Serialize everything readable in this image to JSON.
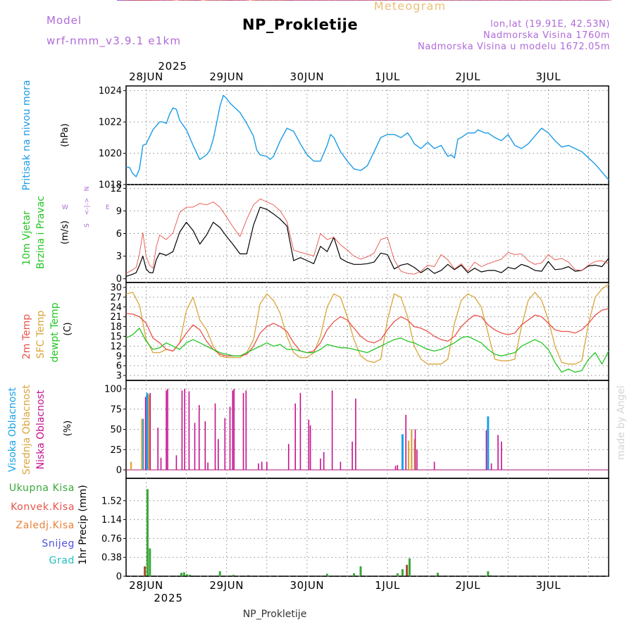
{
  "header": {
    "model_label": "Model",
    "model_name": "wrf-nmm_v3.9.1 e1km",
    "app_title": "Meteogram",
    "location": "NP_Prokletije",
    "coords": "lon,lat (19.91E, 42.53N)",
    "altitude": "Nadmorska Visina 1760m",
    "model_altitude": "Nadmorska Visina u modelu 1672.05m",
    "watermark": "made by Angel",
    "footer_location": "NP_Prokletije"
  },
  "time_axis": {
    "year": "2025",
    "day_labels": [
      "28JUN",
      "29JUN",
      "30JUN",
      "1JUL",
      "2JUL",
      "3JUL"
    ],
    "start_hour": -6,
    "end_hour": 138
  },
  "colors": {
    "pressure": "#1a9be6",
    "temp_2m": "#e8524a",
    "temp_sfc": "#d9a53a",
    "dewpoint": "#22c522",
    "wind_speed": "#000000",
    "gust": "#e8524a",
    "high_cloud": "#1aa3e8",
    "mid_cloud": "#d9a53a",
    "low_cloud": "#c4128e",
    "total_precip": "#3aa83a",
    "convective_precip": "#e8524a",
    "stratiform_precip": "#e8823a",
    "snow": "#5050e0",
    "graupel": "#22c0c0"
  },
  "panels": {
    "pressure": {
      "ylabel_parts": [
        "Pritisak na nivou mora"
      ],
      "unit": "(hPa)",
      "yticks": [
        "1024",
        "1022",
        "1020",
        "1018"
      ]
    },
    "wind": {
      "ylabel_parts": [
        "10m Vjetar",
        "Brzina i Pravac"
      ],
      "unit": "(m/s)",
      "yticks": [
        "12",
        "9",
        "6",
        "3",
        "0"
      ],
      "compass": {
        "w": "W",
        "e": "E",
        "n": "N",
        "s": "S",
        "arrow": "<-|->"
      }
    },
    "temperature": {
      "ylabel_parts": [
        "2m Temp",
        "SFC Temp",
        "dewpt Temp"
      ],
      "unit": "(C)",
      "yticks": [
        "30",
        "27",
        "24",
        "21",
        "18",
        "15",
        "12",
        "9",
        "6",
        "3"
      ]
    },
    "cloud": {
      "ylabel_parts": [
        "Visoka Oblacnost",
        "Srednja Oblacnost",
        "Niska Oblacnost"
      ],
      "unit": "(%)",
      "yticks": [
        "100",
        "75",
        "50",
        "25",
        "0"
      ]
    },
    "precip": {
      "legend": [
        "Ukupna Kisa",
        "Konvek.Kisa",
        "Zaledj.Kisa",
        "Snijeg",
        "Grad"
      ],
      "ylabel": "1hr Precip (mm)",
      "yticks": [
        "1.52",
        "1.14",
        "0.76",
        "0.38",
        "0"
      ]
    }
  },
  "chart_data": {
    "type": "line",
    "x_unit": "hours from 28JUN 00 UTC",
    "pressure_hpa": {
      "ylim": [
        1018,
        1024.3
      ],
      "x": [
        -6,
        -5,
        -4,
        -3,
        -2,
        -1,
        0,
        2,
        4,
        5,
        6,
        7,
        8,
        9,
        10,
        12,
        14,
        16,
        18,
        19,
        20,
        21,
        22,
        23,
        24,
        25,
        26,
        28,
        30,
        32,
        33,
        34,
        36,
        37,
        38,
        40,
        42,
        44,
        46,
        48,
        50,
        52,
        54,
        55,
        56,
        58,
        60,
        62,
        64,
        66,
        68,
        70,
        72,
        74,
        76,
        78,
        79,
        80,
        82,
        84,
        86,
        88,
        90,
        91,
        92,
        93,
        94,
        96,
        98,
        99,
        100,
        101,
        102,
        104,
        106,
        108,
        110,
        112,
        114,
        116,
        118,
        120,
        122,
        124,
        126,
        128,
        130,
        132,
        134,
        136,
        138
      ],
      "y": [
        1019.1,
        1019.1,
        1018.7,
        1018.5,
        1019.0,
        1020.5,
        1020.6,
        1021.5,
        1022.0,
        1022.0,
        1021.9,
        1022.5,
        1022.9,
        1022.8,
        1022.1,
        1021.5,
        1020.5,
        1019.6,
        1019.9,
        1020.2,
        1020.9,
        1021.9,
        1023.0,
        1023.7,
        1023.5,
        1023.2,
        1023.0,
        1022.6,
        1021.9,
        1021.1,
        1020.2,
        1019.9,
        1019.8,
        1019.6,
        1019.8,
        1020.8,
        1021.6,
        1021.4,
        1020.6,
        1019.9,
        1019.5,
        1019.5,
        1020.5,
        1021.2,
        1021.0,
        1020.1,
        1019.5,
        1019.0,
        1018.9,
        1019.2,
        1020.1,
        1021.0,
        1021.2,
        1021.2,
        1021.0,
        1021.3,
        1021.0,
        1020.6,
        1020.3,
        1020.7,
        1020.3,
        1020.5,
        1019.8,
        1019.9,
        1019.7,
        1020.9,
        1021.0,
        1021.3,
        1021.3,
        1021.5,
        1021.4,
        1021.3,
        1021.3,
        1021.0,
        1020.8,
        1021.2,
        1020.5,
        1020.3,
        1020.6,
        1021.1,
        1021.6,
        1021.3,
        1020.8,
        1020.4,
        1020.5,
        1020.3,
        1020.1,
        1019.7,
        1019.3,
        1018.8,
        1018.3
      ]
    },
    "wind": {
      "ylim": [
        -0.5,
        12.5
      ],
      "x": [
        -6,
        -4,
        -3,
        -2,
        -1,
        0,
        1,
        2,
        3,
        4,
        6,
        8,
        10,
        12,
        14,
        16,
        18,
        20,
        22,
        24,
        26,
        28,
        30,
        32,
        34,
        36,
        38,
        40,
        42,
        44,
        46,
        48,
        50,
        52,
        54,
        56,
        58,
        60,
        62,
        64,
        66,
        68,
        70,
        72,
        74,
        76,
        78,
        80,
        82,
        84,
        86,
        88,
        90,
        92,
        94,
        96,
        98,
        100,
        102,
        104,
        106,
        108,
        110,
        112,
        114,
        116,
        118,
        120,
        122,
        124,
        126,
        128,
        130,
        132,
        134,
        136,
        138
      ],
      "speed": [
        0.3,
        0.6,
        0.8,
        1.8,
        3.0,
        1.3,
        0.8,
        0.8,
        2.5,
        3.4,
        3.1,
        3.6,
        6.2,
        7.5,
        6.4,
        4.6,
        5.8,
        7.5,
        6.8,
        5.6,
        4.5,
        3.3,
        3.3,
        7.1,
        9.5,
        9.2,
        8.6,
        7.9,
        7.0,
        2.4,
        2.8,
        2.4,
        2.0,
        4.3,
        3.6,
        5.5,
        2.7,
        2.2,
        1.9,
        1.9,
        2.0,
        2.2,
        3.4,
        3.2,
        1.3,
        1.8,
        2.0,
        1.5,
        0.8,
        1.4,
        0.7,
        1.1,
        1.9,
        1.2,
        1.8,
        0.8,
        1.4,
        0.9,
        1.1,
        1.1,
        0.8,
        1.5,
        1.3,
        1.9,
        1.6,
        1.1,
        1.0,
        2.3,
        1.2,
        1.3,
        1.6,
        1.0,
        1.1,
        1.7,
        1.8,
        1.6,
        2.7
      ],
      "gust": [
        0.7,
        1.2,
        1.5,
        3.3,
        6.1,
        3.0,
        1.8,
        1.4,
        4.2,
        5.8,
        5.2,
        6.1,
        8.8,
        9.5,
        9.5,
        10.0,
        9.8,
        10.2,
        9.5,
        8.2,
        6.8,
        5.6,
        7.9,
        9.8,
        10.6,
        10.2,
        9.8,
        9.0,
        7.6,
        3.8,
        3.5,
        3.3,
        3.0,
        6.0,
        5.2,
        5.5,
        4.5,
        3.8,
        3.0,
        2.6,
        2.9,
        3.4,
        5.2,
        5.5,
        2.5,
        1.0,
        0.7,
        0.6,
        1.0,
        1.8,
        1.6,
        3.2,
        2.5,
        1.3,
        2.0,
        1.0,
        2.2,
        1.6,
        2.0,
        2.3,
        2.6,
        3.5,
        3.2,
        3.3,
        2.4,
        1.9,
        2.1,
        3.2,
        2.5,
        2.7,
        2.2,
        1.2,
        1.1,
        1.8,
        2.3,
        2.4,
        2.0
      ]
    },
    "temperature_c": {
      "ylim": [
        1.5,
        31.5
      ],
      "x": [
        -6,
        -4,
        -2,
        0,
        2,
        4,
        6,
        8,
        10,
        12,
        14,
        16,
        18,
        20,
        22,
        24,
        26,
        28,
        30,
        32,
        34,
        36,
        38,
        40,
        42,
        44,
        46,
        48,
        50,
        52,
        54,
        56,
        58,
        60,
        62,
        64,
        66,
        68,
        70,
        72,
        74,
        76,
        78,
        80,
        82,
        84,
        86,
        88,
        90,
        92,
        94,
        96,
        98,
        100,
        102,
        104,
        106,
        108,
        110,
        112,
        114,
        116,
        118,
        120,
        122,
        124,
        126,
        128,
        130,
        132,
        134,
        136,
        138
      ],
      "t2m": [
        22,
        21.8,
        21,
        19,
        14.5,
        13,
        11,
        10.5,
        13,
        16,
        18.5,
        17,
        13.5,
        11,
        9.5,
        9,
        9,
        9,
        9.5,
        12,
        16,
        18,
        19,
        18,
        16.5,
        13,
        10.5,
        10,
        10.5,
        13,
        17,
        19.5,
        21,
        20,
        17.5,
        15,
        13.5,
        13,
        14,
        17,
        19.5,
        21,
        20,
        18,
        17.5,
        16.5,
        15,
        14,
        13.5,
        15,
        18,
        20,
        21.5,
        21,
        18.5,
        17,
        16,
        15.5,
        16,
        18.5,
        20,
        21.5,
        21,
        19,
        17,
        16.5,
        16.5,
        16,
        17,
        19,
        21.5,
        23,
        23.5
      ],
      "tsfc": [
        28,
        28.5,
        24.5,
        14,
        10,
        10,
        11,
        10.5,
        13,
        23,
        27,
        20,
        17,
        12,
        9,
        8.5,
        8.5,
        8.5,
        10,
        14,
        25,
        28,
        26,
        22,
        15,
        10,
        8.5,
        8.5,
        10,
        15,
        24,
        28,
        27,
        21,
        14,
        9,
        7.5,
        7,
        8,
        20,
        28,
        27,
        21,
        12,
        8,
        6.5,
        6.5,
        6.5,
        8,
        19,
        26,
        28,
        27,
        24,
        16,
        8,
        7.5,
        7.5,
        8,
        18,
        26,
        28.5,
        26,
        20,
        12,
        7,
        6.5,
        6.5,
        7.5,
        19,
        27,
        29.5,
        31
      ],
      "dewpoint": [
        14.5,
        15.5,
        17.5,
        13.5,
        11,
        11.5,
        13,
        12,
        11,
        13,
        14,
        13,
        12,
        11,
        10,
        9.5,
        9,
        9,
        10,
        11,
        12,
        13,
        12,
        12.5,
        11,
        11,
        10.5,
        10,
        10,
        11,
        12.5,
        12,
        11.5,
        11.5,
        11,
        10.5,
        10,
        11,
        12,
        13,
        14,
        14.5,
        13.5,
        13,
        12,
        11,
        10.5,
        11,
        12,
        13,
        14.5,
        15,
        14,
        13,
        11,
        9.5,
        9,
        9.5,
        10,
        12,
        13,
        14,
        13,
        11,
        7,
        4,
        5,
        4,
        4.5,
        8,
        10,
        6.5,
        10.5
      ]
    },
    "cloud_pct": {
      "ylim": [
        0,
        100
      ],
      "high": [
        {
          "x": -1,
          "v": 63
        },
        {
          "x": 0.3,
          "v": 95
        },
        {
          "x": 76.5,
          "v": 44
        },
        {
          "x": 102,
          "v": 66
        }
      ],
      "mid": [
        {
          "x": -4.5,
          "v": 10
        },
        {
          "x": -1.3,
          "v": 63
        },
        {
          "x": 0.8,
          "v": 93
        },
        {
          "x": 78.3,
          "v": 36
        },
        {
          "x": 79.2,
          "v": 50
        },
        {
          "x": 80.1,
          "v": 38
        }
      ],
      "low": [
        {
          "x": -0.2,
          "v": 90
        },
        {
          "x": 1.2,
          "v": 95
        },
        {
          "x": 3.5,
          "v": 52
        },
        {
          "x": 4.4,
          "v": 15
        },
        {
          "x": 6,
          "v": 98
        },
        {
          "x": 6.4,
          "v": 100
        },
        {
          "x": 9,
          "v": 18
        },
        {
          "x": 10.7,
          "v": 98
        },
        {
          "x": 11.5,
          "v": 100
        },
        {
          "x": 12.8,
          "v": 97
        },
        {
          "x": 14.5,
          "v": 58
        },
        {
          "x": 15.8,
          "v": 80
        },
        {
          "x": 17.6,
          "v": 60
        },
        {
          "x": 18.4,
          "v": 9
        },
        {
          "x": 20.6,
          "v": 82
        },
        {
          "x": 21.5,
          "v": 38
        },
        {
          "x": 23.5,
          "v": 64
        },
        {
          "x": 25,
          "v": 78
        },
        {
          "x": 25.8,
          "v": 98
        },
        {
          "x": 26.2,
          "v": 100
        },
        {
          "x": 29,
          "v": 95
        },
        {
          "x": 29.8,
          "v": 98
        },
        {
          "x": 33.5,
          "v": 8
        },
        {
          "x": 34.5,
          "v": 10
        },
        {
          "x": 36,
          "v": 10
        },
        {
          "x": 42.5,
          "v": 32
        },
        {
          "x": 44.5,
          "v": 82
        },
        {
          "x": 46,
          "v": 95
        },
        {
          "x": 48.5,
          "v": 62
        },
        {
          "x": 49,
          "v": 55
        },
        {
          "x": 52,
          "v": 14
        },
        {
          "x": 53,
          "v": 22
        },
        {
          "x": 55.5,
          "v": 98
        },
        {
          "x": 58,
          "v": 10
        },
        {
          "x": 61.5,
          "v": 35
        },
        {
          "x": 62.5,
          "v": 88
        },
        {
          "x": 74.4,
          "v": 5
        },
        {
          "x": 75,
          "v": 6
        },
        {
          "x": 77.5,
          "v": 68
        },
        {
          "x": 80.3,
          "v": 50
        },
        {
          "x": 80.8,
          "v": 25
        },
        {
          "x": 86,
          "v": 10
        },
        {
          "x": 101.5,
          "v": 49
        },
        {
          "x": 103,
          "v": 8
        },
        {
          "x": 105,
          "v": 43
        },
        {
          "x": 106,
          "v": 35
        }
      ]
    },
    "precip_mm": {
      "ylim": [
        0,
        1.8
      ],
      "total": [
        {
          "x": 0.4,
          "v": 1.75
        },
        {
          "x": 1.1,
          "v": 0.56
        },
        {
          "x": 10.5,
          "v": 0.07
        },
        {
          "x": 11.3,
          "v": 0.08
        },
        {
          "x": 12.2,
          "v": 0.04
        },
        {
          "x": 13,
          "v": 0.03
        },
        {
          "x": 22,
          "v": 0.1
        },
        {
          "x": 26,
          "v": 0.03
        },
        {
          "x": 30.5,
          "v": 0.02
        },
        {
          "x": 54,
          "v": 0.05
        },
        {
          "x": 62,
          "v": 0.06
        },
        {
          "x": 64,
          "v": 0.2
        },
        {
          "x": 75,
          "v": 0.06
        },
        {
          "x": 76.5,
          "v": 0.14
        },
        {
          "x": 78.6,
          "v": 0.36
        },
        {
          "x": 87,
          "v": 0.07
        },
        {
          "x": 102,
          "v": 0.1
        },
        {
          "x": 103,
          "v": 0.02
        }
      ],
      "convective": [
        {
          "x": -0.4,
          "v": 0.2
        },
        {
          "x": 77.8,
          "v": 0.23
        }
      ],
      "stratiform": [],
      "snow": [],
      "graupel": []
    }
  }
}
